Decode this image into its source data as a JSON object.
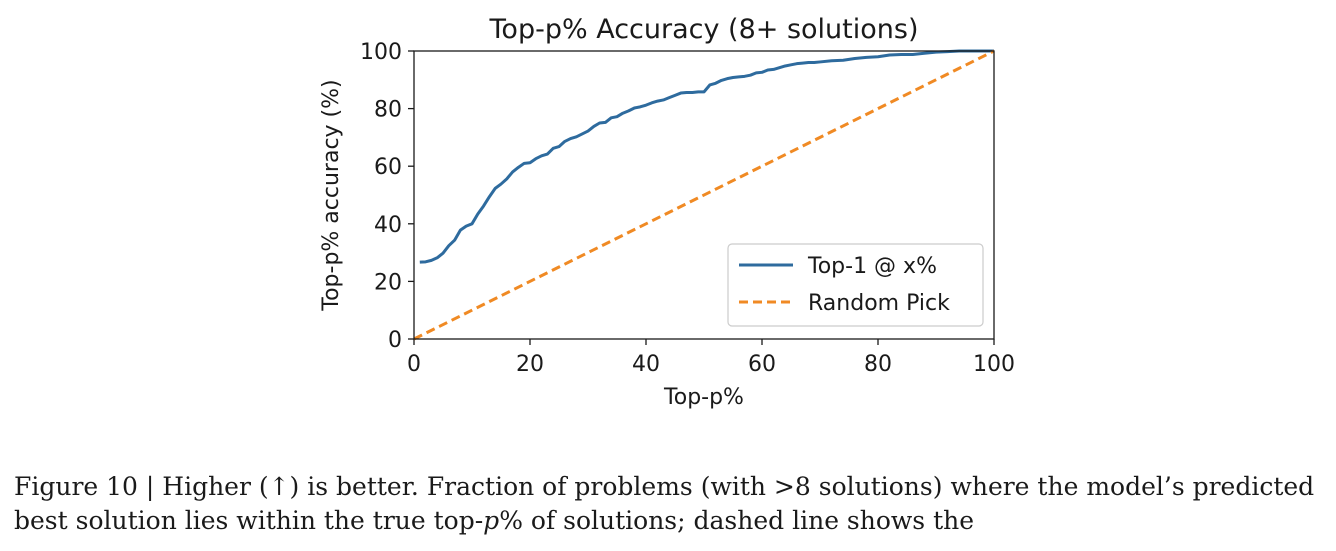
{
  "chart_data": {
    "type": "line",
    "title": "Top-p% Accuracy (8+ solutions)",
    "xlabel": "Top-p%",
    "ylabel": "Top-p% accuracy (%)",
    "xlim": [
      0,
      100
    ],
    "ylim": [
      0,
      100
    ],
    "xticks": [
      0,
      20,
      40,
      60,
      80,
      100
    ],
    "yticks": [
      0,
      20,
      40,
      60,
      80,
      100
    ],
    "grid": false,
    "legend_position": "lower-right",
    "series": [
      {
        "name": "Top-1 @ x%",
        "color": "#2e6b9e",
        "style": "solid",
        "x": [
          1,
          2,
          3,
          4,
          5,
          6,
          7,
          8,
          9,
          10,
          11,
          12,
          13,
          14,
          15,
          16,
          17,
          18,
          19,
          20,
          21,
          22,
          23,
          24,
          25,
          26,
          27,
          28,
          29,
          30,
          31,
          32,
          33,
          34,
          35,
          36,
          37,
          38,
          39,
          40,
          41,
          42,
          43,
          44,
          45,
          46,
          47,
          48,
          49,
          50,
          51,
          52,
          53,
          54,
          55,
          56,
          57,
          58,
          59,
          60,
          61,
          62,
          63,
          64,
          65,
          66,
          67,
          68,
          69,
          70,
          72,
          74,
          76,
          78,
          80,
          82,
          84,
          86,
          88,
          90,
          92,
          94,
          96,
          98,
          100
        ],
        "y": [
          26.7,
          26.8,
          27.3,
          28.2,
          29.8,
          32.4,
          34.3,
          37.8,
          39.2,
          40.0,
          43.4,
          46.2,
          49.4,
          52.3,
          53.8,
          55.6,
          58.0,
          59.6,
          61.0,
          61.2,
          62.6,
          63.6,
          64.2,
          66.2,
          66.8,
          68.6,
          69.6,
          70.2,
          71.2,
          72.2,
          73.8,
          75.0,
          75.2,
          76.8,
          77.2,
          78.4,
          79.2,
          80.2,
          80.6,
          81.2,
          82.0,
          82.6,
          83.0,
          83.8,
          84.6,
          85.4,
          85.6,
          85.6,
          85.8,
          85.8,
          88.2,
          88.8,
          89.8,
          90.4,
          90.8,
          91.0,
          91.2,
          91.6,
          92.4,
          92.6,
          93.4,
          93.6,
          94.2,
          94.8,
          95.2,
          95.6,
          95.8,
          96.0,
          96.0,
          96.2,
          96.6,
          96.8,
          97.4,
          97.8,
          98.0,
          98.6,
          98.8,
          98.8,
          99.2,
          99.6,
          99.8,
          100.0,
          100.0,
          100.0,
          100.0
        ]
      },
      {
        "name": "Random Pick",
        "color": "#f08a24",
        "style": "dashed",
        "x": [
          0,
          100
        ],
        "y": [
          0,
          100
        ]
      }
    ]
  },
  "caption": {
    "line1": "Figure 10 | Higher (↑) is better. Fraction of problems (with >8 solutions) where the model’s predicted",
    "line2_a": "best solution lies within the true top-",
    "line2_p": "p",
    "line2_b": "% of solutions; dashed line shows the"
  }
}
